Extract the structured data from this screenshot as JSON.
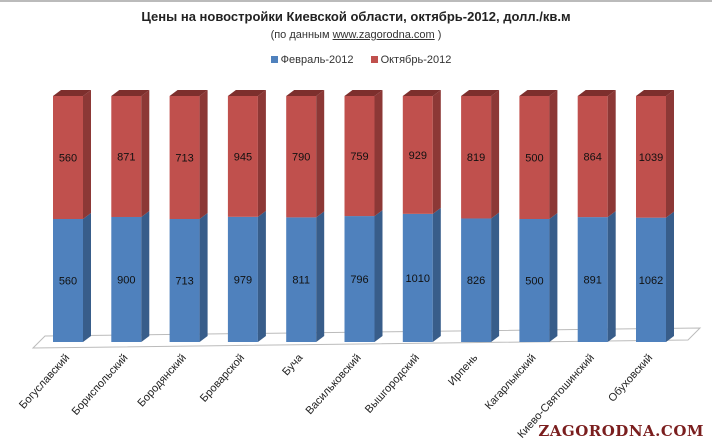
{
  "chart_data": {
    "type": "bar",
    "stacked": "percent",
    "title": "Цены на новостройки Киевской области, октябрь-2012, долл./кв.м",
    "subtitle_prefix": "(по данным ",
    "subtitle_link": "www.zagorodna.com",
    "subtitle_suffix": " )",
    "categories": [
      "Богуславский",
      "Бориспольский",
      "Бородянский",
      "Броварской",
      "Буча",
      "Васильковский",
      "Вышгородский",
      "Ирпень",
      "Кагарлыкский",
      "Киево-Святошинский",
      "Обуховский"
    ],
    "series": [
      {
        "name": "Февраль-2012",
        "color": "#4f81bd",
        "values": [
          560,
          900,
          713,
          979,
          811,
          796,
          1010,
          826,
          500,
          891,
          1062
        ]
      },
      {
        "name": "Октябрь-2012",
        "color": "#c0504d",
        "values": [
          560,
          871,
          713,
          945,
          790,
          759,
          929,
          819,
          500,
          864,
          1039
        ]
      }
    ],
    "legend_position": "top"
  },
  "watermark": "ZAGORODNA.COM"
}
